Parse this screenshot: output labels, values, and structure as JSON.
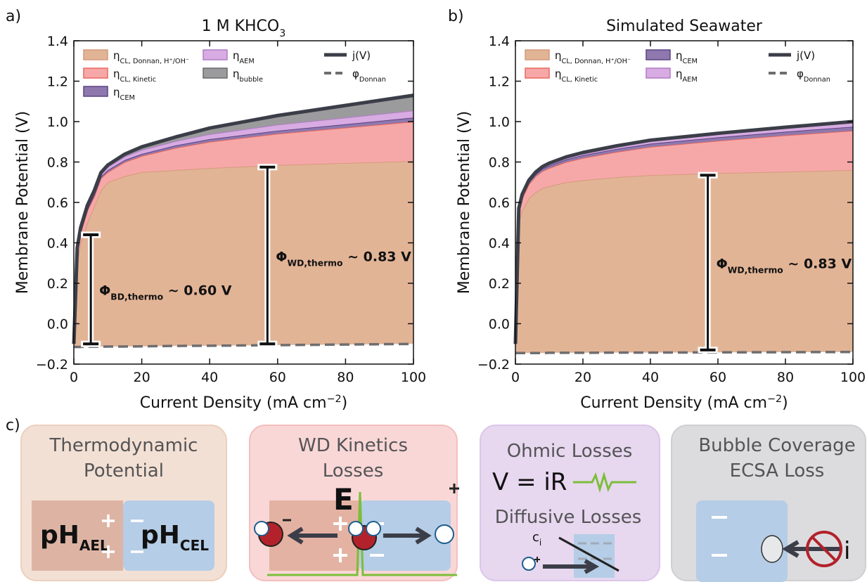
{
  "chart_data": [
    {
      "type": "area",
      "panel": "a)",
      "title": "1 M KHCO",
      "title_sub": "3",
      "xlabel": "Current Density (mA cm",
      "xlabel_sup": "−2",
      "xlabel_end": ")",
      "ylabel": "Membrane Potential (V)",
      "x": [
        0,
        1,
        2,
        4,
        6,
        8,
        10,
        15,
        20,
        30,
        40,
        60,
        80,
        100
      ],
      "xlim": [
        0,
        100
      ],
      "xticks": [
        0,
        20,
        40,
        60,
        80,
        100
      ],
      "ylim": [
        -0.2,
        1.4
      ],
      "yticks": [
        {
          "value": -0.2,
          "label": "−0.2"
        },
        {
          "value": 0,
          "label": "0.0"
        },
        0.2,
        0.4,
        0.6,
        0.8,
        {
          "value": 1,
          "label": "1.0"
        },
        1.2,
        1.4
      ],
      "series": [
        {
          "name": "η",
          "name_sub": "CL, Donnan, H⁺/OH⁻",
          "style": "area",
          "color": "#e2b496",
          "edge": "#d49a7c",
          "values": [
            0.015,
            0.415,
            0.515,
            0.614,
            0.694,
            0.774,
            0.813,
            0.843,
            0.862,
            0.87,
            0.879,
            0.891,
            0.898,
            0.905
          ]
        },
        {
          "name": "η",
          "name_sub": "CL, Kinetic",
          "style": "area",
          "color": "#f6a8a8",
          "edge": "#e8695e",
          "values": [
            0,
            0.05,
            0.05,
            0.06,
            0.05,
            0.06,
            0.05,
            0.07,
            0.08,
            0.11,
            0.13,
            0.155,
            0.175,
            0.195
          ]
        },
        {
          "name": "η",
          "name_sub": "CEM",
          "style": "area",
          "color": "#8f78ad",
          "edge": "#5b4283",
          "values": [
            0,
            0.005,
            0.005,
            0.006,
            0.008,
            0.008,
            0.01,
            0.01,
            0.01,
            0.012,
            0.013,
            0.015,
            0.017,
            0.02
          ]
        },
        {
          "name": "η",
          "name_sub": "AEM",
          "style": "area",
          "color": "#d8abe2",
          "edge": "#b07cc4",
          "values": [
            0,
            0.01,
            0.01,
            0.01,
            0.01,
            0.01,
            0.015,
            0.017,
            0.02,
            0.022,
            0.025,
            0.03,
            0.033,
            0.035
          ]
        },
        {
          "name": "η",
          "name_sub": "bubble",
          "style": "area",
          "color": "#9b9b9d",
          "edge": "#6a6a6c",
          "values": [
            0,
            0.01,
            0.01,
            0.01,
            0.01,
            0.01,
            0.01,
            0.012,
            0.015,
            0.02,
            0.03,
            0.045,
            0.06,
            0.075
          ]
        },
        {
          "name": "j(V)",
          "style": "line",
          "color": "#3b3e48",
          "values": [
            -0.1,
            0.375,
            0.475,
            0.586,
            0.658,
            0.748,
            0.785,
            0.839,
            0.875,
            0.924,
            0.968,
            1.03,
            1.08,
            1.13
          ]
        },
        {
          "name": "φ",
          "name_sub": "Donnan",
          "style": "dashed",
          "color": "#6e6e70",
          "values": [
            -0.115,
            -0.115,
            -0.115,
            -0.114,
            -0.114,
            -0.114,
            -0.113,
            -0.113,
            -0.112,
            -0.11,
            -0.109,
            -0.106,
            -0.103,
            -0.1
          ]
        }
      ],
      "annotations": [
        {
          "label": "Φ",
          "label_sub": "BD,thermo",
          "label_end": " ~ 0.60 V",
          "x": 5,
          "range": [
            -0.1,
            0.44
          ]
        },
        {
          "label": "Φ",
          "label_sub": "WD,thermo",
          "label_end": " ~ 0.83 V",
          "x": 57,
          "range": [
            -0.1,
            0.775
          ]
        }
      ]
    },
    {
      "type": "area",
      "panel": "b)",
      "title": "Simulated Seawater",
      "xlabel": "Current Density (mA cm",
      "xlabel_sup": "−2",
      "xlabel_end": ")",
      "ylabel": "Membrane Potential (V)",
      "x": [
        0,
        1,
        2,
        4,
        6,
        8,
        10,
        15,
        20,
        30,
        40,
        60,
        80,
        100
      ],
      "xlim": [
        0,
        100
      ],
      "xticks": [
        0,
        20,
        40,
        60,
        80,
        100
      ],
      "ylim": [
        -0.2,
        1.4
      ],
      "yticks": [
        {
          "value": -0.2,
          "label": "−0.2"
        },
        {
          "value": 0,
          "label": "0.0"
        },
        0.2,
        0.4,
        0.6,
        0.8,
        {
          "value": 1,
          "label": "1.0"
        },
        1.2,
        1.4
      ],
      "series": [
        {
          "name": "η",
          "name_sub": "CL, Donnan, H⁺/OH⁻",
          "style": "area",
          "color": "#e2b496",
          "edge": "#d49a7c",
          "values": [
            0.045,
            0.645,
            0.705,
            0.765,
            0.795,
            0.815,
            0.824,
            0.844,
            0.854,
            0.868,
            0.878,
            0.887,
            0.893,
            0.9
          ]
        },
        {
          "name": "η",
          "name_sub": "CL, Kinetic",
          "style": "area",
          "color": "#f6a8a8",
          "edge": "#e8695e",
          "values": [
            0,
            0.05,
            0.06,
            0.07,
            0.08,
            0.085,
            0.09,
            0.1,
            0.11,
            0.125,
            0.14,
            0.16,
            0.18,
            0.195
          ]
        },
        {
          "name": "η",
          "name_sub": "CEM",
          "style": "area",
          "color": "#8f78ad",
          "edge": "#5b4283",
          "values": [
            0,
            0.01,
            0.01,
            0.01,
            0.01,
            0.012,
            0.012,
            0.013,
            0.014,
            0.015,
            0.016,
            0.017,
            0.018,
            0.02
          ]
        },
        {
          "name": "η",
          "name_sub": "AEM",
          "style": "area",
          "color": "#d8abe2",
          "edge": "#b07cc4",
          "values": [
            0,
            0.01,
            0.01,
            0.01,
            0.01,
            0.01,
            0.012,
            0.012,
            0.013,
            0.015,
            0.017,
            0.02,
            0.022,
            0.025
          ]
        },
        {
          "name": "j(V)",
          "style": "line",
          "color": "#3b3e48",
          "values": [
            -0.1,
            0.57,
            0.64,
            0.71,
            0.75,
            0.777,
            0.794,
            0.825,
            0.847,
            0.88,
            0.908,
            0.942,
            0.972,
            1.0
          ]
        },
        {
          "name": "φ",
          "name_sub": "Donnan",
          "style": "dashed",
          "color": "#6e6e70",
          "values": [
            -0.145,
            -0.145,
            -0.145,
            -0.145,
            -0.145,
            -0.145,
            -0.144,
            -0.144,
            -0.144,
            -0.143,
            -0.143,
            -0.142,
            -0.141,
            -0.14
          ]
        }
      ],
      "annotations": [
        {
          "label": "Φ",
          "label_sub": "WD,thermo",
          "label_end": " ~ 0.83 V",
          "x": 57,
          "range": [
            -0.13,
            0.735
          ]
        }
      ]
    }
  ],
  "panel_c": {
    "label": "c)",
    "boxes": [
      {
        "title": [
          "Thermodynamic",
          "Potential"
        ],
        "left": "pH",
        "left_sub": "AEL",
        "right": "pH",
        "right_sub": "CEL"
      },
      {
        "title": [
          "WD Kinetics",
          "Losses"
        ],
        "field": "E"
      },
      {
        "title": [
          "Ohmic Losses"
        ],
        "law": "V = iR",
        "title2": "Diffusive Losses",
        "conc": "c",
        "conc_sub": "i"
      },
      {
        "title": [
          "Bubble Coverage",
          "ECSA Loss"
        ],
        "current": "i"
      }
    ]
  }
}
